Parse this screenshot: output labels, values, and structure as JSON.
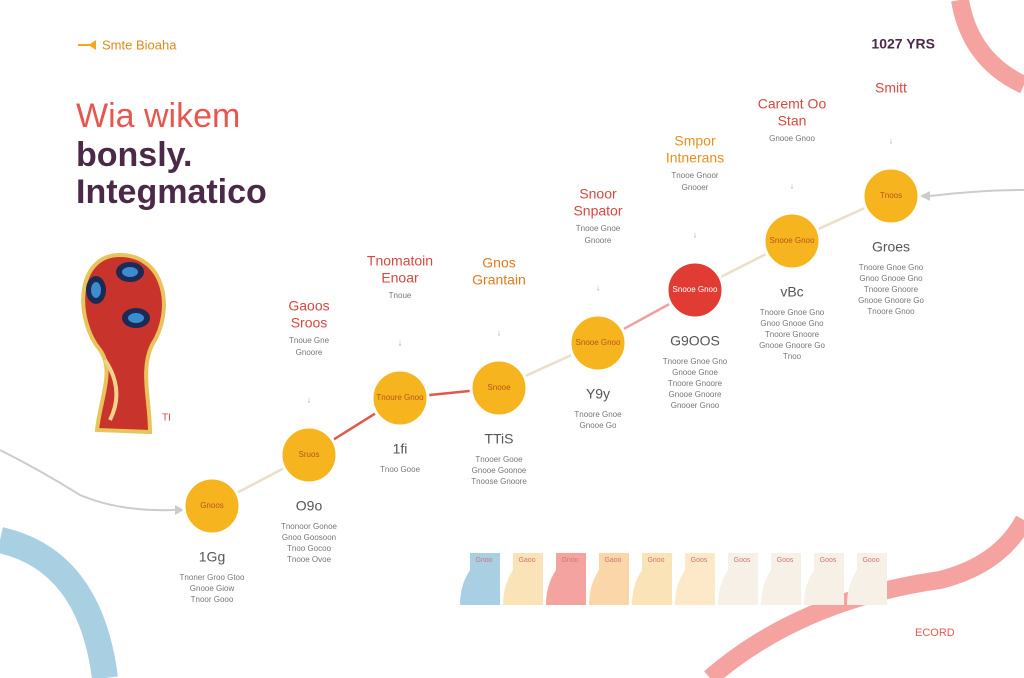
{
  "header": {
    "brand": "Smte Bioaha",
    "year": "1027 YRS"
  },
  "title": [
    "Wia wikem",
    "bonsly.",
    "Integmatico"
  ],
  "trophy_note": "TI",
  "nodes": [
    {
      "title": [],
      "note": [],
      "inner": "Gnoos",
      "value": "1Gg",
      "details": [
        "Tnoner Groo Gtoo",
        "Gnooe Giow",
        "Tnoor Gooo"
      ]
    },
    {
      "title": [
        "Gaoos",
        "Sroos"
      ],
      "note": [
        "Tnoue Gne",
        "Gnoore"
      ],
      "inner": "Sruos",
      "value": "O9o",
      "details": [
        "Tnonoor Gonoe",
        "Gnoo Goosoon",
        "Tnoo Gocoo",
        "Tnooe Ovoe"
      ]
    },
    {
      "title": [
        "Tnomatoin",
        "Enoar"
      ],
      "note": [
        "Tnoue"
      ],
      "inner": "Tnoure Gnoo",
      "value": "1fi",
      "details": [
        "Tnoo Gooe"
      ]
    },
    {
      "title": [
        "Gnos",
        "Grantain"
      ],
      "note": [],
      "inner": "Snooe",
      "value": "TTiS",
      "details": [
        "Tnooer Gooe",
        "Gnooe Goonoe",
        "Tnoose Gnoore"
      ]
    },
    {
      "title": [
        "Snoor",
        "Snpator"
      ],
      "note": [
        "Tnooe Gnoe",
        "Gnoore"
      ],
      "inner": "Snooe Gnoo",
      "value": "Y9y",
      "details": [
        "Tnoore Gnoe",
        "Gnooe Go"
      ]
    },
    {
      "title": [
        "Smpor",
        "Intnerans"
      ],
      "note": [
        "Tnooe Gnoor",
        "Gnooer"
      ],
      "inner": "Snooe Gnoo",
      "value": "G9OOS",
      "details": [
        "Tnoore Gnoe Gno",
        "Gnooe Gnoe",
        "Tnoore Gnoore",
        "Gnooe Gnoore",
        "Gnooer Gnoo"
      ]
    },
    {
      "title": [
        "Caremt Oo",
        "Stan"
      ],
      "note": [
        "Gnooe Gnoo"
      ],
      "inner": "Snooe Gnoo",
      "value": "vBc",
      "details": [
        "Tnoore Gnoe Gno",
        "Gnoo Gnooe Gno",
        "Tnoore Gnoore",
        "Gnooe Gnoore Go",
        "Tnoo"
      ]
    },
    {
      "title": [
        "Smitt"
      ],
      "note": [],
      "inner": "Tnoos",
      "value": "Groes",
      "details": [
        "Tnoore Gnoe Gno",
        "Gnoo Gnooe Gno",
        "Tnoore Gnoore",
        "Gnooe Gnoore Go",
        "Tnoore Gnoo"
      ]
    }
  ],
  "tabs": [
    "Gnoo",
    "Gaoo",
    "Gnoo",
    "Gaoo",
    "Gnoo",
    "Goos",
    "Goos",
    "Goos",
    "Goos",
    "Gooo"
  ],
  "footer": "ECORD"
}
